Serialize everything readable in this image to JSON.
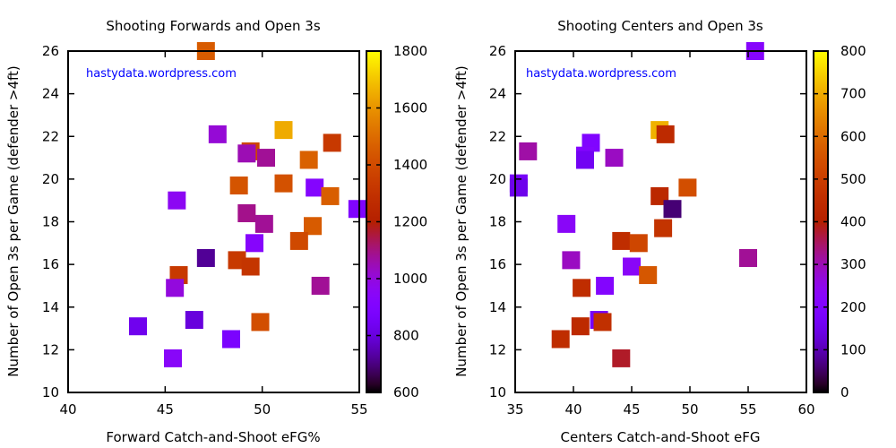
{
  "chart_data": [
    {
      "type": "scatter",
      "title": "Shooting Forwards and Open 3s",
      "xlabel": "Forward Catch-and-Shoot eFG%",
      "ylabel": "Number of Open 3s per Game (defender >4ft)",
      "watermark": "hastydata.wordpress.com",
      "xlim": [
        40,
        55
      ],
      "ylim": [
        10,
        26
      ],
      "xticks": [
        "40",
        "45",
        "50",
        "55"
      ],
      "yticks": [
        "10",
        "12",
        "14",
        "16",
        "18",
        "20",
        "22",
        "24",
        "26"
      ],
      "colorbar": {
        "range": [
          600,
          1800
        ],
        "ticks": [
          "600",
          "800",
          "1000",
          "1200",
          "1400",
          "1600",
          "1800"
        ]
      },
      "points": [
        {
          "x": 47.1,
          "y": 26.0,
          "c": 1450
        },
        {
          "x": 51.1,
          "y": 22.3,
          "c": 1650
        },
        {
          "x": 47.7,
          "y": 22.1,
          "c": 1010
        },
        {
          "x": 53.6,
          "y": 21.7,
          "c": 1330
        },
        {
          "x": 49.4,
          "y": 21.3,
          "c": 1380
        },
        {
          "x": 49.2,
          "y": 21.2,
          "c": 1050
        },
        {
          "x": 50.2,
          "y": 21.0,
          "c": 1080
        },
        {
          "x": 52.4,
          "y": 20.9,
          "c": 1470
        },
        {
          "x": 51.1,
          "y": 19.8,
          "c": 1420
        },
        {
          "x": 48.8,
          "y": 19.7,
          "c": 1430
        },
        {
          "x": 52.7,
          "y": 19.6,
          "c": 920
        },
        {
          "x": 53.5,
          "y": 19.2,
          "c": 1460
        },
        {
          "x": 45.6,
          "y": 19.0,
          "c": 960
        },
        {
          "x": 54.9,
          "y": 18.6,
          "c": 900
        },
        {
          "x": 49.2,
          "y": 18.4,
          "c": 1090
        },
        {
          "x": 50.1,
          "y": 17.9,
          "c": 1080
        },
        {
          "x": 52.6,
          "y": 17.8,
          "c": 1450
        },
        {
          "x": 51.9,
          "y": 17.1,
          "c": 1390
        },
        {
          "x": 49.6,
          "y": 17.0,
          "c": 930
        },
        {
          "x": 47.1,
          "y": 16.3,
          "c": 720
        },
        {
          "x": 48.7,
          "y": 16.2,
          "c": 1330
        },
        {
          "x": 49.4,
          "y": 15.9,
          "c": 1310
        },
        {
          "x": 45.7,
          "y": 15.5,
          "c": 1330
        },
        {
          "x": 45.5,
          "y": 14.9,
          "c": 1000
        },
        {
          "x": 53.0,
          "y": 15.0,
          "c": 1080
        },
        {
          "x": 43.6,
          "y": 13.1,
          "c": 830
        },
        {
          "x": 46.5,
          "y": 13.4,
          "c": 800
        },
        {
          "x": 49.9,
          "y": 13.3,
          "c": 1410
        },
        {
          "x": 48.4,
          "y": 12.5,
          "c": 880
        },
        {
          "x": 45.4,
          "y": 11.6,
          "c": 940
        }
      ]
    },
    {
      "type": "scatter",
      "title": "Shooting Centers and Open 3s",
      "xlabel": "Centers Catch-and-Shoot eFG",
      "ylabel": "Number of Open 3s per Game (defender >4ft)",
      "watermark": "hastydata.wordpress.com",
      "xlim": [
        35,
        60
      ],
      "ylim": [
        10,
        26
      ],
      "xticks": [
        "35",
        "40",
        "45",
        "50",
        "55",
        "60"
      ],
      "yticks": [
        "10",
        "12",
        "14",
        "16",
        "18",
        "20",
        "22",
        "24",
        "26"
      ],
      "colorbar": {
        "range": [
          0,
          800
        ],
        "ticks": [
          "0",
          "100",
          "200",
          "300",
          "400",
          "500",
          "600",
          "700",
          "800"
        ]
      },
      "points": [
        {
          "x": 55.6,
          "y": 26.0,
          "c": 220
        },
        {
          "x": 47.4,
          "y": 22.3,
          "c": 710
        },
        {
          "x": 47.9,
          "y": 22.1,
          "c": 440
        },
        {
          "x": 41.5,
          "y": 21.7,
          "c": 200
        },
        {
          "x": 36.1,
          "y": 21.3,
          "c": 310
        },
        {
          "x": 41.0,
          "y": 21.1,
          "c": 210
        },
        {
          "x": 41.0,
          "y": 20.9,
          "c": 160
        },
        {
          "x": 43.5,
          "y": 21.0,
          "c": 290
        },
        {
          "x": 35.3,
          "y": 19.8,
          "c": 170
        },
        {
          "x": 35.3,
          "y": 19.6,
          "c": 150
        },
        {
          "x": 49.8,
          "y": 19.6,
          "c": 540
        },
        {
          "x": 47.4,
          "y": 19.2,
          "c": 430
        },
        {
          "x": 48.5,
          "y": 18.6,
          "c": 60
        },
        {
          "x": 39.4,
          "y": 17.9,
          "c": 230
        },
        {
          "x": 47.7,
          "y": 17.7,
          "c": 470
        },
        {
          "x": 44.1,
          "y": 17.1,
          "c": 450
        },
        {
          "x": 45.6,
          "y": 17.0,
          "c": 520
        },
        {
          "x": 55.0,
          "y": 16.3,
          "c": 320
        },
        {
          "x": 39.8,
          "y": 16.2,
          "c": 290
        },
        {
          "x": 45.0,
          "y": 15.9,
          "c": 230
        },
        {
          "x": 46.4,
          "y": 15.5,
          "c": 560
        },
        {
          "x": 40.7,
          "y": 14.9,
          "c": 450
        },
        {
          "x": 42.7,
          "y": 15.0,
          "c": 210
        },
        {
          "x": 42.2,
          "y": 13.4,
          "c": 170
        },
        {
          "x": 40.6,
          "y": 13.1,
          "c": 440
        },
        {
          "x": 42.5,
          "y": 13.3,
          "c": 460
        },
        {
          "x": 38.9,
          "y": 12.5,
          "c": 450
        },
        {
          "x": 44.1,
          "y": 11.6,
          "c": 380
        }
      ]
    }
  ]
}
